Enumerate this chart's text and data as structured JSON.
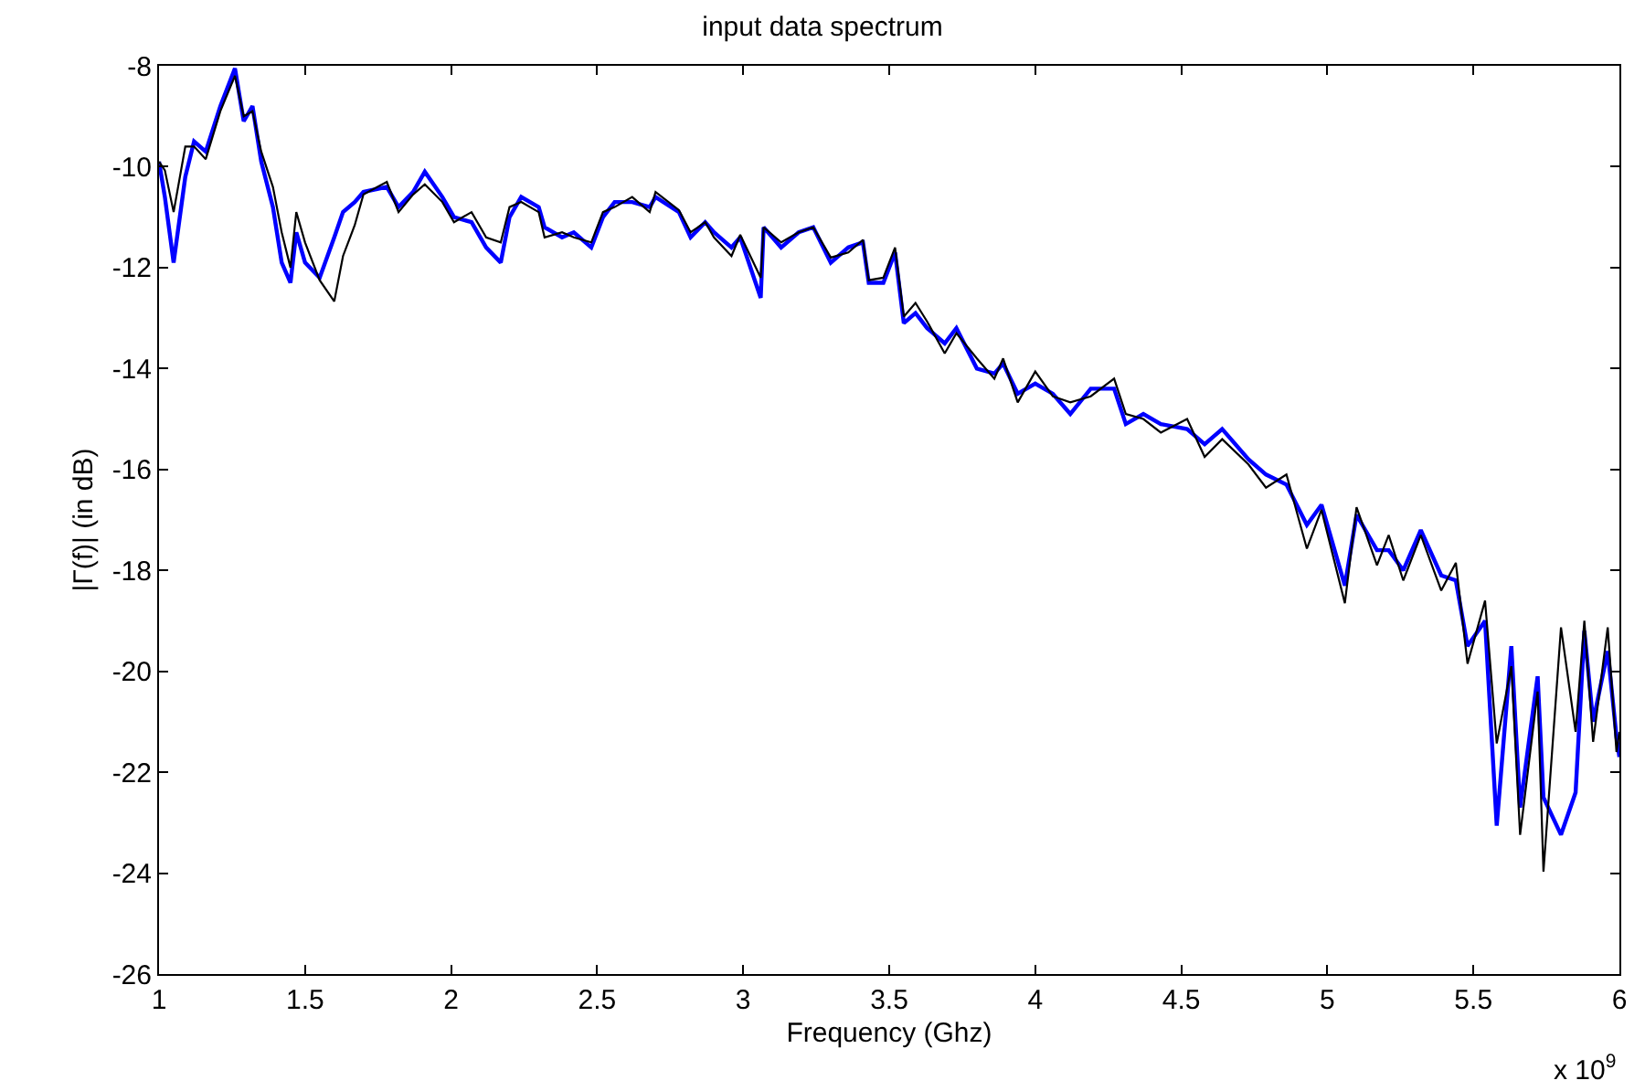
{
  "chart_data": {
    "type": "line",
    "title": "input data spectrum",
    "xlabel": "Frequency (Ghz)",
    "ylabel": "|Γ(f)| (in dB)",
    "annotations": [
      "x 10$^{9}$"
    ],
    "xlim": [
      1,
      6
    ],
    "xticks": [
      1,
      1.5,
      2,
      2.5,
      3,
      3.5,
      4,
      4.5,
      5,
      5.5,
      6
    ],
    "ylim": [
      -26,
      -8
    ],
    "yticks": [
      -26,
      -24,
      -22,
      -20,
      -18,
      -16,
      -14,
      -12,
      -10,
      -8
    ],
    "grid": false,
    "marker": "none",
    "line_style": "solid",
    "x": [
      1,
      1.02,
      1.05,
      1.09,
      1.12,
      1.16,
      1.21,
      1.26,
      1.29,
      1.32,
      1.35,
      1.39,
      1.42,
      1.45,
      1.47,
      1.5,
      1.55,
      1.6,
      1.63,
      1.67,
      1.7,
      1.78,
      1.82,
      1.87,
      1.91,
      1.97,
      2.01,
      2.07,
      2.12,
      2.17,
      2.2,
      2.24,
      2.3,
      2.32,
      2.38,
      2.42,
      2.48,
      2.52,
      2.56,
      2.62,
      2.68,
      2.7,
      2.78,
      2.82,
      2.87,
      2.9,
      2.96,
      2.99,
      3.06,
      3.07,
      3.13,
      3.19,
      3.24,
      3.3,
      3.36,
      3.41,
      3.43,
      3.48,
      3.52,
      3.55,
      3.59,
      3.63,
      3.69,
      3.73,
      3.8,
      3.86,
      3.89,
      3.94,
      4,
      4.06,
      4.12,
      4.19,
      4.27,
      4.31,
      4.37,
      4.43,
      4.52,
      4.58,
      4.64,
      4.73,
      4.79,
      4.86,
      4.93,
      4.98,
      5.06,
      5.1,
      5.17,
      5.21,
      5.26,
      5.32,
      5.39,
      5.44,
      5.48,
      5.54,
      5.58,
      5.63,
      5.66,
      5.72,
      5.74,
      5.8,
      5.85,
      5.88,
      5.91,
      5.96,
      5.99,
      6
    ],
    "series": [
      {
        "color": "#0000ff",
        "values": [
          -9.9,
          -10.6,
          -11.9,
          -10.2,
          -9.5,
          -9.7,
          -8.8,
          -8.05,
          -9.1,
          -8.8,
          -9.9,
          -10.8,
          -11.9,
          -12.3,
          -11.3,
          -11.9,
          -12.2,
          -11.4,
          -10.9,
          -10.7,
          -10.5,
          -10.4,
          -10.8,
          -10.5,
          -10.1,
          -10.6,
          -11,
          -11.1,
          -11.6,
          -11.9,
          -11,
          -10.6,
          -10.8,
          -11.2,
          -11.4,
          -11.3,
          -11.6,
          -11,
          -10.7,
          -10.7,
          -10.8,
          -10.6,
          -10.9,
          -11.4,
          -11.1,
          -11.3,
          -11.6,
          -11.4,
          -12.6,
          -11.2,
          -11.6,
          -11.3,
          -11.2,
          -11.9,
          -11.6,
          -11.5,
          -12.3,
          -12.3,
          -11.7,
          -13.1,
          -12.9,
          -13.2,
          -13.5,
          -13.2,
          -14,
          -14.1,
          -13.9,
          -14.5,
          -14.3,
          -14.5,
          -14.9,
          -14.4,
          -14.4,
          -15.1,
          -14.9,
          -15.1,
          -15.2,
          -15.5,
          -15.2,
          -15.8,
          -16.1,
          -16.3,
          -17.1,
          -16.7,
          -18.3,
          -16.9,
          -17.6,
          -17.6,
          -18,
          -17.2,
          -18.1,
          -18.2,
          -19.5,
          -19,
          -23.06,
          -19.5,
          -22.7,
          -20.1,
          -22.5,
          -23.24,
          -22.4,
          -19.2,
          -21,
          -19.6,
          -21.3,
          -21.7
        ]
      },
      {
        "color": "#000000",
        "values": [
          -9.9,
          -10.07,
          -10.9,
          -9.6,
          -9.6,
          -9.85,
          -8.9,
          -8.2,
          -9,
          -8.9,
          -9.7,
          -10.4,
          -11.3,
          -12,
          -10.9,
          -11.5,
          -12.25,
          -12.67,
          -11.77,
          -11.16,
          -10.55,
          -10.3,
          -10.9,
          -10.55,
          -10.35,
          -10.7,
          -11.1,
          -10.9,
          -11.4,
          -11.5,
          -10.8,
          -10.7,
          -10.9,
          -11.4,
          -11.3,
          -11.4,
          -11.5,
          -10.9,
          -10.8,
          -10.6,
          -10.9,
          -10.5,
          -10.86,
          -11.3,
          -11.1,
          -11.4,
          -11.77,
          -11.35,
          -12.2,
          -11.2,
          -11.5,
          -11.3,
          -11.2,
          -11.8,
          -11.7,
          -11.45,
          -12.25,
          -12.2,
          -11.6,
          -12.97,
          -12.7,
          -13.07,
          -13.7,
          -13.3,
          -13.8,
          -14.2,
          -13.8,
          -14.67,
          -14.06,
          -14.55,
          -14.67,
          -14.55,
          -14.2,
          -14.9,
          -15,
          -15.27,
          -15,
          -15.75,
          -15.4,
          -15.9,
          -16.36,
          -16.1,
          -17.57,
          -16.8,
          -18.65,
          -16.75,
          -17.9,
          -17.3,
          -18.2,
          -17.3,
          -18.4,
          -17.85,
          -19.85,
          -18.6,
          -21.43,
          -19.9,
          -23.24,
          -20.4,
          -23.97,
          -19.13,
          -21.2,
          -19,
          -21.4,
          -19.13,
          -21.6,
          -21.2
        ]
      }
    ]
  }
}
